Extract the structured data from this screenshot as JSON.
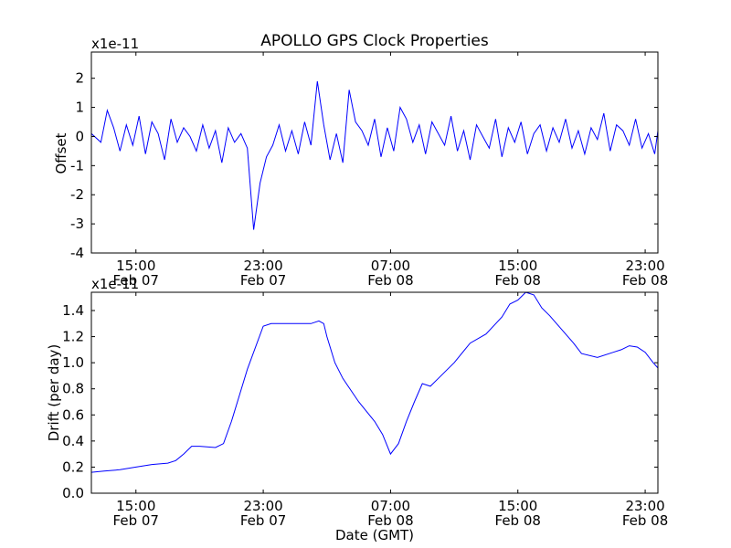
{
  "chart_data": [
    {
      "type": "line",
      "title": "APOLLO GPS Clock Properties",
      "xlabel": "",
      "ylabel": "Offset",
      "y_scale_label": "x1e-11",
      "x_ticks": [
        {
          "hour": 15,
          "line1": "15:00",
          "line2": "Feb 07"
        },
        {
          "hour": 23,
          "line1": "23:00",
          "line2": "Feb 07"
        },
        {
          "hour": 31,
          "line1": "07:00",
          "line2": "Feb 08"
        },
        {
          "hour": 39,
          "line1": "15:00",
          "line2": "Feb 08"
        },
        {
          "hour": 47,
          "line1": "23:00",
          "line2": "Feb 08"
        }
      ],
      "xlim": [
        12.2,
        47.8
      ],
      "ylim": [
        -4,
        2.9
      ],
      "y_ticks": [
        2,
        1,
        0,
        -1,
        -2,
        -3,
        -4
      ],
      "y_tick_labels": [
        "2",
        "1",
        "0",
        "-1",
        "-2",
        "-3",
        "-4"
      ],
      "color": "#0000ff",
      "grid": false,
      "series": [
        {
          "x": [
            12.2,
            12.8,
            13.2,
            13.6,
            14.0,
            14.4,
            14.8,
            15.2,
            15.6,
            16.0,
            16.4,
            16.8,
            17.2,
            17.6,
            18.0,
            18.4,
            18.8,
            19.2,
            19.6,
            20.0,
            20.4,
            20.8,
            21.2,
            21.6,
            22.0,
            22.4,
            22.8,
            23.2,
            23.6,
            24.0,
            24.4,
            24.8,
            25.2,
            25.6,
            26.0,
            26.4,
            26.8,
            27.2,
            27.6,
            28.0,
            28.4,
            28.8,
            29.2,
            29.6,
            30.0,
            30.4,
            30.8,
            31.2,
            31.6,
            32.0,
            32.4,
            32.8,
            33.2,
            33.6,
            34.0,
            34.4,
            34.8,
            35.2,
            35.6,
            36.0,
            36.4,
            36.8,
            37.2,
            37.6,
            38.0,
            38.4,
            38.8,
            39.2,
            39.6,
            40.0,
            40.4,
            40.8,
            41.2,
            41.6,
            42.0,
            42.4,
            42.8,
            43.2,
            43.6,
            44.0,
            44.4,
            44.8,
            45.2,
            45.6,
            46.0,
            46.4,
            46.8,
            47.2,
            47.6,
            47.8
          ],
          "y": [
            0.1,
            -0.2,
            0.9,
            0.3,
            -0.5,
            0.4,
            -0.3,
            0.7,
            -0.6,
            0.5,
            0.1,
            -0.8,
            0.6,
            -0.2,
            0.3,
            0.0,
            -0.5,
            0.4,
            -0.4,
            0.2,
            -0.9,
            0.3,
            -0.2,
            0.1,
            -0.4,
            -3.2,
            -1.6,
            -0.7,
            -0.3,
            0.4,
            -0.5,
            0.2,
            -0.6,
            0.5,
            -0.3,
            1.9,
            0.4,
            -0.8,
            0.1,
            -0.9,
            1.6,
            0.5,
            0.2,
            -0.3,
            0.6,
            -0.7,
            0.3,
            -0.5,
            1.0,
            0.6,
            -0.2,
            0.4,
            -0.6,
            0.5,
            0.1,
            -0.3,
            0.7,
            -0.5,
            0.2,
            -0.8,
            0.4,
            0.0,
            -0.4,
            0.6,
            -0.7,
            0.3,
            -0.2,
            0.5,
            -0.6,
            0.1,
            0.4,
            -0.5,
            0.3,
            -0.2,
            0.6,
            -0.4,
            0.2,
            -0.6,
            0.3,
            -0.1,
            0.8,
            -0.5,
            0.4,
            0.2,
            -0.3,
            0.6,
            -0.4,
            0.1,
            -0.6,
            0.2
          ]
        }
      ]
    },
    {
      "type": "line",
      "title": "",
      "xlabel": "Date (GMT)",
      "ylabel": "Drift (per day)",
      "y_scale_label": "x1e-11",
      "x_ticks": [
        {
          "hour": 15,
          "line1": "15:00",
          "line2": "Feb 07"
        },
        {
          "hour": 23,
          "line1": "23:00",
          "line2": "Feb 07"
        },
        {
          "hour": 31,
          "line1": "07:00",
          "line2": "Feb 08"
        },
        {
          "hour": 39,
          "line1": "15:00",
          "line2": "Feb 08"
        },
        {
          "hour": 47,
          "line1": "23:00",
          "line2": "Feb 08"
        }
      ],
      "xlim": [
        12.2,
        47.8
      ],
      "ylim": [
        0,
        1.54
      ],
      "y_ticks": [
        0,
        0.2,
        0.4,
        0.6,
        0.8,
        1.0,
        1.2,
        1.4
      ],
      "y_tick_labels": [
        "0.0",
        "0.2",
        "0.4",
        "0.6",
        "0.8",
        "1.0",
        "1.2",
        "1.4"
      ],
      "color": "#0000ff",
      "grid": false,
      "series": [
        {
          "x": [
            12.2,
            13.0,
            14.0,
            15.0,
            16.0,
            17.0,
            17.5,
            18.0,
            18.5,
            19.0,
            20.0,
            20.5,
            21.0,
            21.5,
            22.0,
            23.0,
            23.5,
            24.0,
            25.0,
            26.0,
            26.5,
            26.8,
            27.0,
            27.5,
            28.0,
            29.0,
            30.0,
            30.5,
            31.0,
            31.5,
            32.0,
            32.5,
            33.0,
            33.5,
            34.0,
            35.0,
            36.0,
            37.0,
            38.0,
            38.5,
            39.0,
            39.5,
            40.0,
            40.5,
            41.0,
            42.0,
            42.5,
            43.0,
            44.0,
            45.0,
            45.5,
            46.0,
            46.5,
            47.0,
            47.5,
            47.8
          ],
          "y": [
            0.16,
            0.17,
            0.18,
            0.2,
            0.22,
            0.23,
            0.25,
            0.3,
            0.36,
            0.36,
            0.35,
            0.38,
            0.55,
            0.75,
            0.95,
            1.28,
            1.3,
            1.3,
            1.3,
            1.3,
            1.32,
            1.3,
            1.2,
            1.0,
            0.88,
            0.7,
            0.55,
            0.45,
            0.3,
            0.38,
            0.55,
            0.7,
            0.84,
            0.82,
            0.88,
            1.0,
            1.15,
            1.22,
            1.35,
            1.45,
            1.48,
            1.54,
            1.52,
            1.42,
            1.36,
            1.22,
            1.15,
            1.07,
            1.04,
            1.08,
            1.1,
            1.13,
            1.12,
            1.08,
            1.0,
            0.96
          ]
        }
      ]
    }
  ]
}
